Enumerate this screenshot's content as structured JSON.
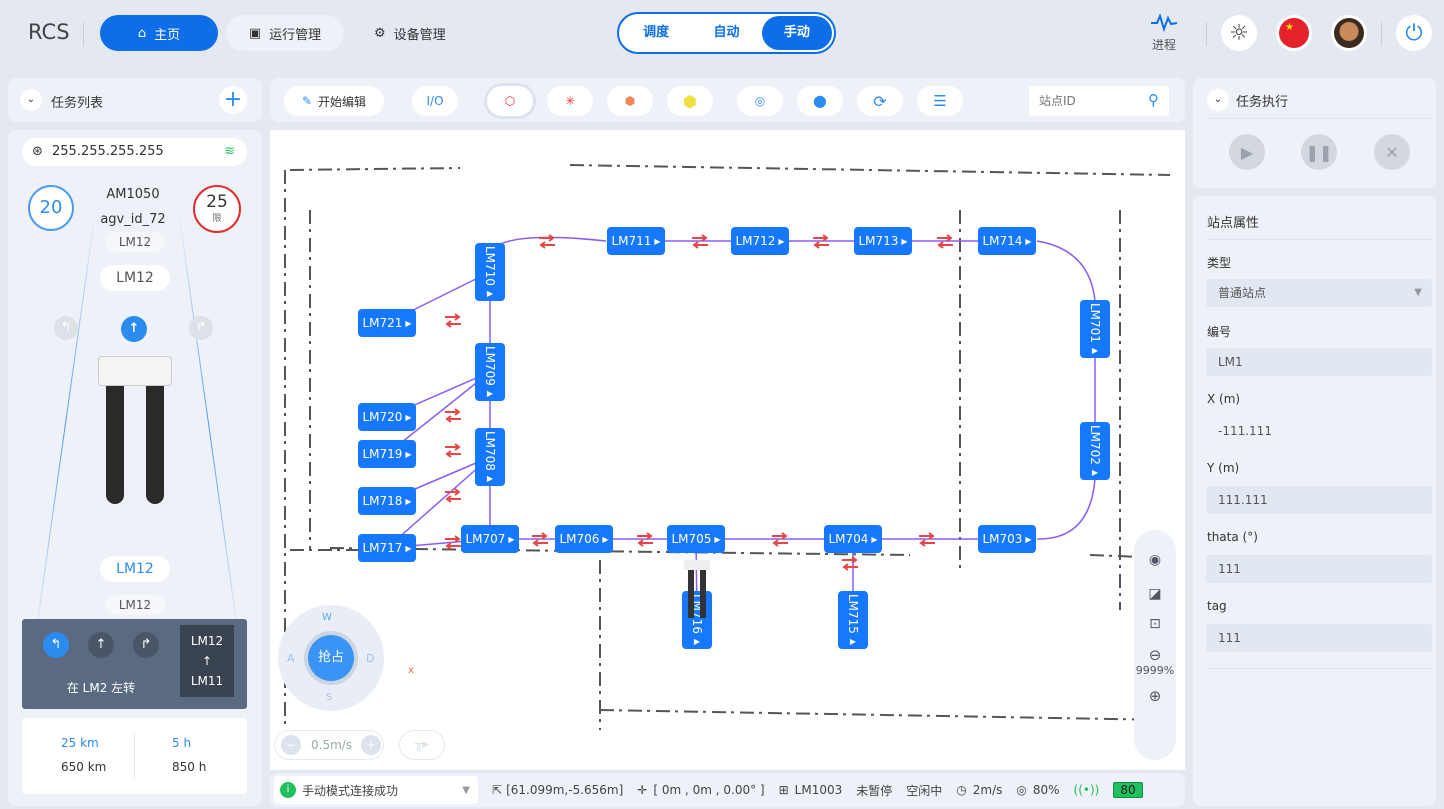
{
  "header": {
    "logo": "RCS",
    "nav": [
      {
        "label": "主页",
        "active": true
      },
      {
        "label": "运行管理"
      },
      {
        "label": "设备管理"
      }
    ],
    "modes": [
      {
        "label": "调度"
      },
      {
        "label": "自动"
      },
      {
        "label": "手动",
        "active": true
      }
    ],
    "progress_label": "进程",
    "icons": [
      "sun-icon",
      "china-flag-icon",
      "avatar",
      "power-icon"
    ]
  },
  "task_list": {
    "title": "任务列表"
  },
  "vehicle": {
    "ip": "255.255.255.255",
    "speed": "20",
    "model": "AM1050",
    "id": "agv_id_72",
    "limit": "25",
    "limit_label": "限",
    "stations_top": [
      "LM12",
      "LM12"
    ],
    "stations_bottom": [
      "LM12",
      "LM12"
    ],
    "instruction": "在 LM2 左转",
    "route_from": "LM12",
    "route_to": "LM11",
    "stats": {
      "dist_now": "25 km",
      "dist_total": "650 km",
      "time_now": "5 h",
      "time_total": "850 h"
    }
  },
  "toolbar": {
    "edit": "开始编辑",
    "io": "I/O",
    "search_placeholder": "站点ID"
  },
  "map": {
    "nodes": [
      "LM711",
      "LM712",
      "LM713",
      "LM714",
      "LM721",
      "LM720",
      "LM719",
      "LM718",
      "LM717",
      "LM707",
      "LM706",
      "LM705",
      "LM704",
      "LM703",
      "LM710",
      "LM709",
      "LM708",
      "LM701",
      "LM702",
      "LM716",
      "LM715"
    ],
    "joystick": {
      "center": "抢占",
      "up": "W",
      "left": "A",
      "right": "D",
      "down": "S"
    },
    "axis_label": "x",
    "speed": "0.5m/s",
    "zoom": "9999%",
    "path_color": "#8a5cf5",
    "node_color": "#1677ff",
    "arrow_color": "#e84545"
  },
  "status": {
    "message": "手动模式连接成功",
    "cursor": "[61.099m,-5.656m]",
    "origin": "[ 0m , 0m , 0.00° ]",
    "station": "LM1003",
    "pause": "未暂停",
    "state": "空闲中",
    "speed": "2m/s",
    "load": "80%",
    "battery": "80"
  },
  "task_exec": {
    "title": "任务执行"
  },
  "props": {
    "title": "站点属性",
    "type_label": "类型",
    "type_value": "普通站点",
    "id_label": "编号",
    "id_value": "LM1",
    "x_label": "X (m)",
    "x_value": "-111.111",
    "y_label": "Y (m)",
    "y_value": "111.111",
    "theta_label": "thata (°)",
    "theta_value": "111",
    "tag_label": "tag",
    "tag_value": "111"
  }
}
